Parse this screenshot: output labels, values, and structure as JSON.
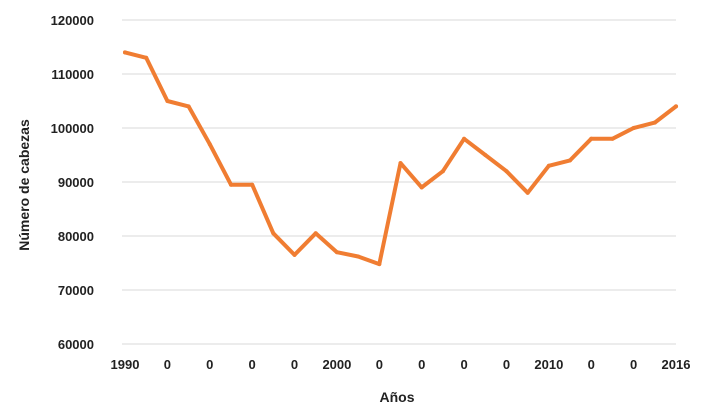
{
  "chart_data": {
    "type": "line",
    "title": "",
    "xlabel": "Años",
    "ylabel": "Número de cabezas",
    "x_tick_labels": [
      "1990",
      "0",
      "0",
      "0",
      "0",
      "2000",
      "0",
      "0",
      "0",
      "0",
      "2010",
      "0",
      "0",
      "2016"
    ],
    "x": [
      1990,
      1991,
      1992,
      1993,
      1994,
      1995,
      1996,
      1997,
      1998,
      1999,
      2000,
      2001,
      2002,
      2003,
      2004,
      2005,
      2006,
      2007,
      2008,
      2009,
      2010,
      2011,
      2012,
      2013,
      2014,
      2015,
      2016
    ],
    "series": [
      {
        "values": [
          114000,
          113000,
          105000,
          104000,
          97000,
          89500,
          89500,
          80500,
          76500,
          80500,
          77000,
          76200,
          74800,
          93500,
          89000,
          92000,
          98000,
          95000,
          92000,
          88000,
          93000,
          94000,
          98000,
          98000,
          100000,
          101000,
          104000
        ]
      }
    ],
    "ylim": [
      60000,
      120000
    ],
    "y_ticks": [
      "60000",
      "70000",
      "80000",
      "90000",
      "100000",
      "110000",
      "120000"
    ],
    "grid": true,
    "line_color": "#f07d32"
  }
}
